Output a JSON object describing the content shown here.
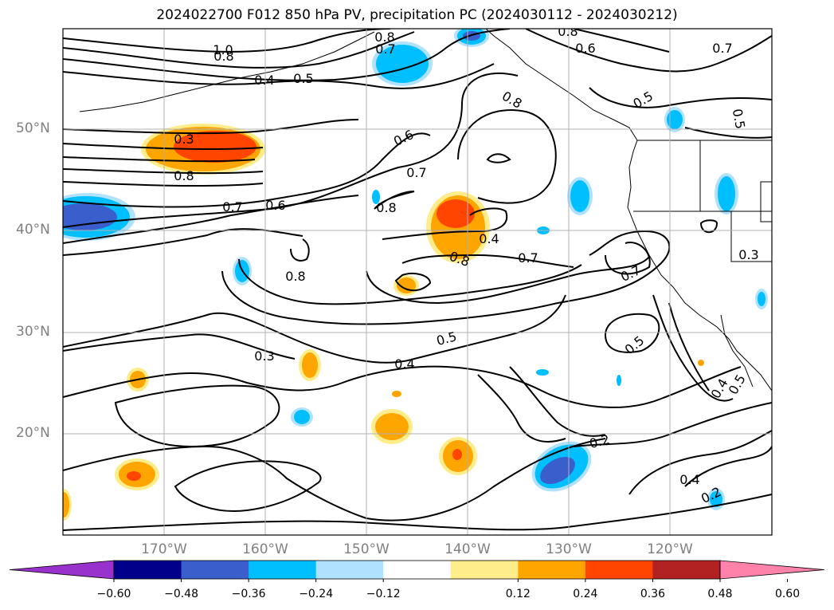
{
  "title": "2024022700 F012 850 hPa PV, precipitation PC (2024030112 - 2024030212)",
  "map": {
    "lat_labels": [
      "50°N",
      "40°N",
      "30°N",
      "20°N"
    ],
    "lon_labels": [
      "170°W",
      "160°W",
      "150°W",
      "140°W",
      "130°W",
      "120°W"
    ],
    "contour_labels": [
      "1.0",
      "0.8",
      "0.4",
      "0.5",
      "0.8",
      "0.7",
      "0.3",
      "0.8",
      "0.7",
      "0.6",
      "0.6",
      "0.7",
      "0.8",
      "0.8",
      "0.4",
      "0.8",
      "0.7",
      "0.8",
      "0.7",
      "0.5",
      "0.3",
      "0.4",
      "0.5",
      "0.6",
      "0.8",
      "0.7",
      "0.5",
      "0.5",
      "0.2",
      "0.4",
      "0.2",
      "0.4",
      "0.5",
      "0.3"
    ],
    "contour_field": "850 hPa PV",
    "shading_field": "precipitation PC"
  },
  "colorbar": {
    "ticks": [
      "−0.60",
      "−0.48",
      "−0.36",
      "−0.24",
      "−0.12",
      "0.12",
      "0.24",
      "0.36",
      "0.48",
      "0.60"
    ],
    "colors": [
      "#9932cc",
      "#00008b",
      "#3a5fcd",
      "#00bfff",
      "#b0e2ff",
      "#ffffff",
      "#ffec8b",
      "#ffa500",
      "#ff4500",
      "#b22222",
      "#ff82ab"
    ]
  }
}
